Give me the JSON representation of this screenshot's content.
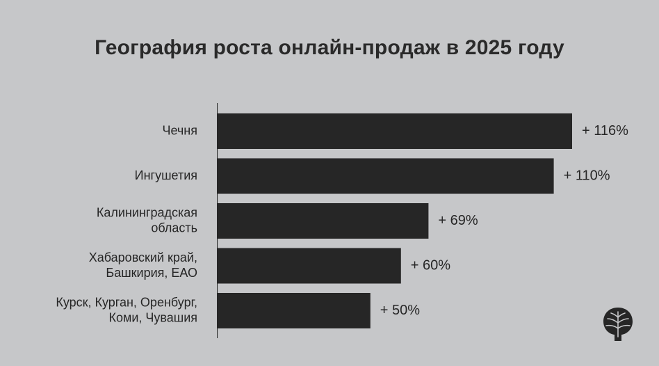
{
  "chart_data": {
    "type": "bar",
    "orientation": "horizontal",
    "title": "География роста онлайн-продаж в 2025 году",
    "categories": [
      [
        "Чечня"
      ],
      [
        "Ингушетия"
      ],
      [
        "Калининградская",
        "область"
      ],
      [
        "Хабаровский край,",
        "Башкирия, ЕАО"
      ],
      [
        "Курск, Курган, Оренбург,",
        "Коми, Чувашия"
      ]
    ],
    "values": [
      116,
      110,
      69,
      60,
      50
    ],
    "value_labels": [
      "+ 116%",
      "+ 110%",
      "+ 69%",
      "+ 60%",
      "+ 50%"
    ],
    "unit": "%",
    "xlim": [
      0,
      116
    ],
    "bar_color": "#262626",
    "grid": false,
    "legend": "none"
  },
  "colors": {
    "background": "#c6c7c9",
    "bar": "#262626",
    "text": "#262626"
  },
  "logo": {
    "icon": "tree-logo-icon"
  }
}
